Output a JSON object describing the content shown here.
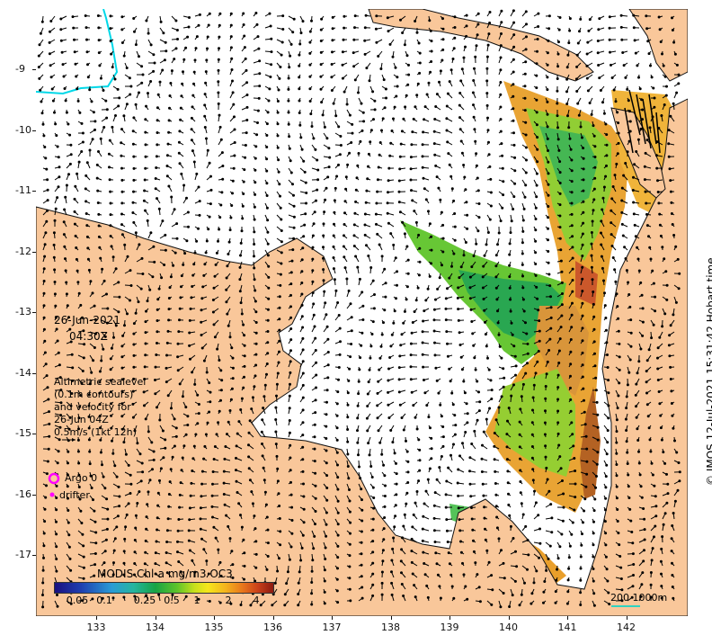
{
  "date_label": "26-Jun-2021",
  "time_label": "04:30Z",
  "legend": {
    "altimetry_lines": [
      "Altimetric sealevel",
      "(0.1m contours)",
      "and velocity for",
      "26-Jun 04Z",
      "0.5m/s (1kt 12h)"
    ],
    "argo_label": "Argo 0",
    "drifter_label": "drifter"
  },
  "colorbar": {
    "title": "MODIS Chl-a mg/m3 OC3",
    "ticks": [
      "0.05",
      "0.1",
      "0.25",
      "0.5",
      "1",
      "2",
      "4"
    ]
  },
  "scale": {
    "label": "200  1000m"
  },
  "credit": "© IMOS 12-Jul-2021 15:31:42 Hobart time",
  "axes": {
    "lat_labels": [
      "-9",
      "-10",
      "-11",
      "-12",
      "-13",
      "-14",
      "-15",
      "-16",
      "-17"
    ],
    "lon_labels": [
      "133",
      "134",
      "135",
      "136",
      "137",
      "138",
      "139",
      "140",
      "141",
      "142"
    ]
  },
  "colors": {
    "land": "#f9c79a",
    "ocean": "#ffffff",
    "contour": "#00d8e8",
    "argo": "#ff00ff",
    "drifter": "#ff00ff",
    "scale_bar": "#2fd3c0"
  }
}
